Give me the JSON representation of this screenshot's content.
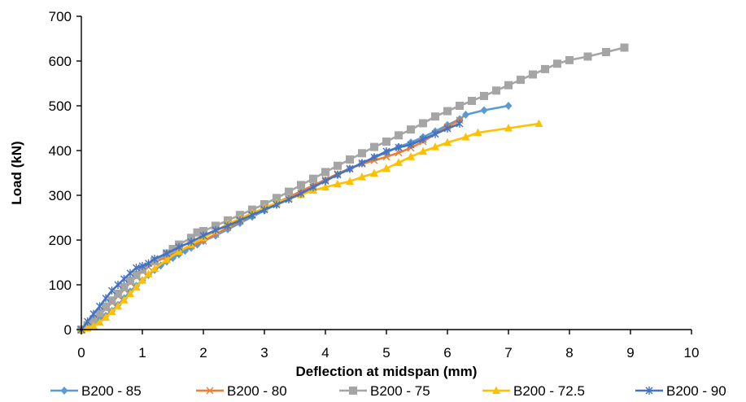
{
  "chart_data": {
    "type": "line",
    "title": "",
    "xlabel": "Deflection at midspan (mm)",
    "ylabel": "Load (kN)",
    "xlim": [
      0,
      10
    ],
    "ylim": [
      0,
      700
    ],
    "x_ticks": [
      "0",
      "1",
      "2",
      "3",
      "4",
      "5",
      "6",
      "7",
      "8",
      "9",
      "10"
    ],
    "y_ticks": [
      "0",
      "100",
      "200",
      "300",
      "400",
      "500",
      "600",
      "700"
    ],
    "grid": false,
    "legend_position": "bottom",
    "series": [
      {
        "name": "B200 - 85",
        "color": "#5b9bd5",
        "marker": "diamond",
        "points": [
          [
            0,
            0
          ],
          [
            0.1,
            5
          ],
          [
            0.2,
            13
          ],
          [
            0.3,
            22
          ],
          [
            0.4,
            31
          ],
          [
            0.5,
            42
          ],
          [
            0.6,
            55
          ],
          [
            0.7,
            70
          ],
          [
            0.8,
            85
          ],
          [
            0.9,
            98
          ],
          [
            1.0,
            110
          ],
          [
            1.1,
            122
          ],
          [
            1.2,
            133
          ],
          [
            1.3,
            143
          ],
          [
            1.4,
            152
          ],
          [
            1.5,
            160
          ],
          [
            1.6,
            168
          ],
          [
            1.7,
            176
          ],
          [
            1.8,
            183
          ],
          [
            1.9,
            190
          ],
          [
            2.0,
            198
          ],
          [
            2.2,
            210
          ],
          [
            2.4,
            224
          ],
          [
            2.6,
            238
          ],
          [
            2.8,
            252
          ],
          [
            3.0,
            266
          ],
          [
            3.2,
            280
          ],
          [
            3.4,
            293
          ],
          [
            3.6,
            306
          ],
          [
            3.8,
            320
          ],
          [
            4.0,
            333
          ],
          [
            4.2,
            346
          ],
          [
            4.4,
            359
          ],
          [
            4.6,
            372
          ],
          [
            4.8,
            384
          ],
          [
            5.0,
            396
          ],
          [
            5.2,
            408
          ],
          [
            5.4,
            418
          ],
          [
            5.6,
            430
          ],
          [
            5.8,
            443
          ],
          [
            6.0,
            457
          ],
          [
            6.2,
            470
          ],
          [
            6.3,
            480
          ],
          [
            6.6,
            490
          ],
          [
            7.0,
            500
          ]
        ]
      },
      {
        "name": "B200 - 80",
        "color": "#ed7d31",
        "marker": "x",
        "points": [
          [
            0,
            0
          ],
          [
            0.1,
            8
          ],
          [
            0.2,
            20
          ],
          [
            0.3,
            33
          ],
          [
            0.4,
            47
          ],
          [
            0.5,
            60
          ],
          [
            0.6,
            75
          ],
          [
            0.7,
            90
          ],
          [
            0.8,
            105
          ],
          [
            0.9,
            118
          ],
          [
            1.0,
            130
          ],
          [
            1.1,
            140
          ],
          [
            1.2,
            150
          ],
          [
            1.4,
            163
          ],
          [
            1.6,
            176
          ],
          [
            1.8,
            187
          ],
          [
            2.0,
            198
          ],
          [
            2.2,
            213
          ],
          [
            2.4,
            228
          ],
          [
            2.6,
            242
          ],
          [
            2.8,
            256
          ],
          [
            3.0,
            270
          ],
          [
            3.2,
            283
          ],
          [
            3.4,
            296
          ],
          [
            3.6,
            309
          ],
          [
            3.8,
            322
          ],
          [
            4.0,
            335
          ],
          [
            4.2,
            348
          ],
          [
            4.4,
            360
          ],
          [
            4.6,
            370
          ],
          [
            4.8,
            378
          ],
          [
            5.0,
            386
          ],
          [
            5.2,
            395
          ],
          [
            5.4,
            406
          ],
          [
            5.6,
            420
          ],
          [
            5.8,
            437
          ],
          [
            6.0,
            453
          ],
          [
            6.2,
            468
          ]
        ]
      },
      {
        "name": "B200 - 75",
        "color": "#a5a5a5",
        "marker": "square",
        "points": [
          [
            0,
            0
          ],
          [
            0.1,
            10
          ],
          [
            0.2,
            23
          ],
          [
            0.3,
            37
          ],
          [
            0.4,
            51
          ],
          [
            0.5,
            65
          ],
          [
            0.6,
            80
          ],
          [
            0.7,
            95
          ],
          [
            0.8,
            109
          ],
          [
            0.9,
            122
          ],
          [
            1.0,
            134
          ],
          [
            1.2,
            153
          ],
          [
            1.4,
            170
          ],
          [
            1.5,
            180
          ],
          [
            1.6,
            190
          ],
          [
            1.8,
            205
          ],
          [
            1.9,
            217
          ],
          [
            2.0,
            220
          ],
          [
            2.2,
            232
          ],
          [
            2.4,
            244
          ],
          [
            2.6,
            256
          ],
          [
            2.8,
            268
          ],
          [
            3.0,
            280
          ],
          [
            3.2,
            294
          ],
          [
            3.4,
            308
          ],
          [
            3.6,
            323
          ],
          [
            3.8,
            337
          ],
          [
            4.0,
            352
          ],
          [
            4.2,
            366
          ],
          [
            4.4,
            380
          ],
          [
            4.6,
            394
          ],
          [
            4.8,
            408
          ],
          [
            5.0,
            420
          ],
          [
            5.2,
            434
          ],
          [
            5.4,
            447
          ],
          [
            5.6,
            461
          ],
          [
            5.8,
            476
          ],
          [
            6.0,
            488
          ],
          [
            6.2,
            500
          ],
          [
            6.4,
            511
          ],
          [
            6.6,
            522
          ],
          [
            6.8,
            534
          ],
          [
            7.0,
            546
          ],
          [
            7.2,
            558
          ],
          [
            7.4,
            570
          ],
          [
            7.6,
            582
          ],
          [
            7.8,
            594
          ],
          [
            8.0,
            602
          ],
          [
            8.3,
            610
          ],
          [
            8.6,
            620
          ],
          [
            8.9,
            630
          ]
        ]
      },
      {
        "name": "B200 - 72.5",
        "color": "#ffc000",
        "marker": "triangle",
        "points": [
          [
            0,
            0
          ],
          [
            0.1,
            3
          ],
          [
            0.2,
            8
          ],
          [
            0.3,
            16
          ],
          [
            0.4,
            27
          ],
          [
            0.5,
            40
          ],
          [
            0.6,
            52
          ],
          [
            0.7,
            66
          ],
          [
            0.8,
            80
          ],
          [
            0.9,
            95
          ],
          [
            1.0,
            110
          ],
          [
            1.1,
            124
          ],
          [
            1.2,
            136
          ],
          [
            1.4,
            156
          ],
          [
            1.6,
            174
          ],
          [
            1.8,
            190
          ],
          [
            2.0,
            205
          ],
          [
            2.2,
            220
          ],
          [
            2.4,
            236
          ],
          [
            2.6,
            248
          ],
          [
            2.8,
            260
          ],
          [
            3.0,
            272
          ],
          [
            3.2,
            283
          ],
          [
            3.4,
            293
          ],
          [
            3.6,
            301
          ],
          [
            3.8,
            311
          ],
          [
            4.0,
            318
          ],
          [
            4.2,
            325
          ],
          [
            4.4,
            331
          ],
          [
            4.6,
            341
          ],
          [
            4.8,
            349
          ],
          [
            5.0,
            360
          ],
          [
            5.2,
            373
          ],
          [
            5.4,
            386
          ],
          [
            5.6,
            398
          ],
          [
            5.8,
            408
          ],
          [
            6.0,
            418
          ],
          [
            6.3,
            430
          ],
          [
            6.5,
            440
          ],
          [
            7.0,
            450
          ],
          [
            7.5,
            460
          ]
        ]
      },
      {
        "name": "B200 - 90",
        "color": "#4472c4",
        "marker": "star",
        "points": [
          [
            0,
            0
          ],
          [
            0.1,
            18
          ],
          [
            0.2,
            35
          ],
          [
            0.3,
            52
          ],
          [
            0.4,
            70
          ],
          [
            0.5,
            87
          ],
          [
            0.6,
            100
          ],
          [
            0.7,
            113
          ],
          [
            0.8,
            126
          ],
          [
            0.9,
            138
          ],
          [
            1.0,
            142
          ],
          [
            1.1,
            148
          ],
          [
            1.2,
            158
          ],
          [
            1.4,
            170
          ],
          [
            1.6,
            184
          ],
          [
            1.8,
            196
          ],
          [
            2.0,
            210
          ],
          [
            2.2,
            222
          ],
          [
            2.4,
            232
          ],
          [
            2.6,
            244
          ],
          [
            2.8,
            256
          ],
          [
            3.0,
            268
          ],
          [
            3.2,
            279
          ],
          [
            3.4,
            291
          ],
          [
            3.6,
            304
          ],
          [
            3.8,
            318
          ],
          [
            4.0,
            332
          ],
          [
            4.2,
            346
          ],
          [
            4.4,
            359
          ],
          [
            4.6,
            372
          ],
          [
            4.8,
            385
          ],
          [
            5.0,
            398
          ],
          [
            5.2,
            407
          ],
          [
            5.4,
            413
          ],
          [
            5.6,
            425
          ],
          [
            5.8,
            437
          ],
          [
            6.0,
            449
          ],
          [
            6.2,
            460
          ]
        ]
      }
    ]
  }
}
